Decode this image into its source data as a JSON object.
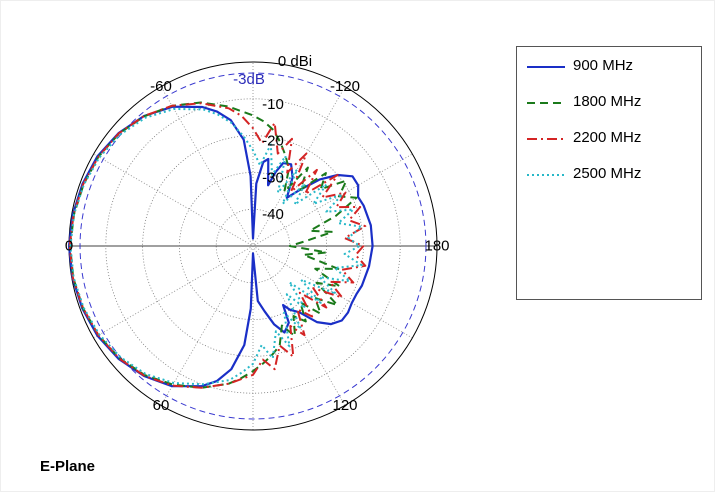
{
  "chart_data": {
    "type": "polar",
    "title": "",
    "radial_unit_label": "0 dBi",
    "reference_label": "-3dB",
    "reference_value": -3,
    "radial_range": [
      -50,
      0
    ],
    "radial_ticks": [
      {
        "value": -10,
        "label": "-10"
      },
      {
        "value": -20,
        "label": "-20"
      },
      {
        "value": -30,
        "label": "-30"
      },
      {
        "value": -40,
        "label": "-40"
      }
    ],
    "angle_ticks": [
      {
        "angle": 0,
        "label": "0"
      },
      {
        "angle": -60,
        "label": "-60"
      },
      {
        "angle": -120,
        "label": "-120"
      },
      {
        "angle": 60,
        "label": "60"
      },
      {
        "angle": 120,
        "label": "120"
      },
      {
        "angle": 180,
        "label": "180"
      }
    ],
    "grid": true,
    "legend_position": "right",
    "series": [
      {
        "name": "900 MHz",
        "color": "#1a2fc7",
        "dash": "solid",
        "points": [
          [
            0,
            0
          ],
          [
            -10,
            -0.3
          ],
          [
            -20,
            -0.7
          ],
          [
            -30,
            -1.2
          ],
          [
            -40,
            -2.3
          ],
          [
            -50,
            -3.9
          ],
          [
            -60,
            -6.3
          ],
          [
            -70,
            -9.8
          ],
          [
            -75,
            -12.2
          ],
          [
            -80,
            -15.3
          ],
          [
            -85,
            -21
          ],
          [
            -88,
            -31
          ],
          [
            -90,
            -48
          ],
          [
            -93,
            -33
          ],
          [
            -97,
            -27
          ],
          [
            -100,
            -26
          ],
          [
            -104,
            -33
          ],
          [
            -107,
            -29
          ],
          [
            -110,
            -26
          ],
          [
            -115,
            -25.5
          ],
          [
            -120,
            -28.5
          ],
          [
            -125,
            -34
          ],
          [
            -130,
            -30
          ],
          [
            -135,
            -24.5
          ],
          [
            -140,
            -20
          ],
          [
            -145,
            -17
          ],
          [
            -150,
            -17
          ],
          [
            -155,
            -18.5
          ],
          [
            -160,
            -18
          ],
          [
            -170,
            -17.5
          ],
          [
            -180,
            -17.5
          ],
          [
            170,
            -18
          ],
          [
            160,
            -18.5
          ],
          [
            155,
            -19
          ],
          [
            150,
            -19
          ],
          [
            145,
            -18.5
          ],
          [
            140,
            -18.5
          ],
          [
            135,
            -20
          ],
          [
            130,
            -23
          ],
          [
            125,
            -28
          ],
          [
            120,
            -30
          ],
          [
            117,
            -32
          ],
          [
            115,
            -27
          ],
          [
            110,
            -25
          ],
          [
            105,
            -28
          ],
          [
            100,
            -32
          ],
          [
            95,
            -35
          ],
          [
            90,
            -48
          ],
          [
            88,
            -33
          ],
          [
            85,
            -23
          ],
          [
            80,
            -16
          ],
          [
            75,
            -12
          ],
          [
            70,
            -9.5
          ],
          [
            60,
            -6
          ],
          [
            50,
            -3.9
          ],
          [
            40,
            -2.3
          ],
          [
            30,
            -1.2
          ],
          [
            20,
            -0.6
          ],
          [
            10,
            -0.2
          ],
          [
            0,
            0
          ]
        ]
      },
      {
        "name": "1800 MHz",
        "color": "#1b7a1b",
        "dash": "8,5",
        "points": [
          [
            0,
            -0.3
          ],
          [
            -10,
            -0.6
          ],
          [
            -20,
            -1
          ],
          [
            -30,
            -1.5
          ],
          [
            -40,
            -2.5
          ],
          [
            -50,
            -4
          ],
          [
            -60,
            -6
          ],
          [
            -70,
            -8.5
          ],
          [
            -80,
            -11.5
          ],
          [
            -90,
            -14.5
          ],
          [
            -95,
            -16
          ],
          [
            -100,
            -18
          ],
          [
            -105,
            -21
          ],
          [
            -110,
            -24
          ],
          [
            -115,
            -27
          ],
          [
            -120,
            -33
          ],
          [
            -125,
            -24
          ],
          [
            -130,
            -30
          ],
          [
            -135,
            -22
          ],
          [
            -140,
            -26
          ],
          [
            -145,
            -19
          ],
          [
            -150,
            -23
          ],
          [
            -155,
            -19
          ],
          [
            -160,
            -26
          ],
          [
            -165,
            -34
          ],
          [
            -170,
            -28
          ],
          [
            -175,
            -36
          ],
          [
            180,
            -40
          ],
          [
            175,
            -30
          ],
          [
            170,
            -36
          ],
          [
            165,
            -26
          ],
          [
            160,
            -32
          ],
          [
            155,
            -24
          ],
          [
            150,
            -30
          ],
          [
            145,
            -22
          ],
          [
            140,
            -28
          ],
          [
            135,
            -24
          ],
          [
            130,
            -30
          ],
          [
            125,
            -25
          ],
          [
            120,
            -28
          ],
          [
            115,
            -23
          ],
          [
            110,
            -27
          ],
          [
            105,
            -22
          ],
          [
            100,
            -20
          ],
          [
            95,
            -18
          ],
          [
            90,
            -16
          ],
          [
            85,
            -14
          ],
          [
            80,
            -12
          ],
          [
            70,
            -9
          ],
          [
            60,
            -6.5
          ],
          [
            50,
            -4.2
          ],
          [
            40,
            -2.6
          ],
          [
            30,
            -1.5
          ],
          [
            20,
            -0.8
          ],
          [
            10,
            -0.4
          ],
          [
            0,
            -0.3
          ]
        ]
      },
      {
        "name": "2200 MHz",
        "color": "#d42424",
        "dash": "10,4,2,4",
        "points": [
          [
            0,
            -0.2
          ],
          [
            -10,
            -0.5
          ],
          [
            -20,
            -0.9
          ],
          [
            -30,
            -1.5
          ],
          [
            -40,
            -2.4
          ],
          [
            -50,
            -3.9
          ],
          [
            -60,
            -6
          ],
          [
            -70,
            -8.7
          ],
          [
            -80,
            -12
          ],
          [
            -85,
            -14.5
          ],
          [
            -90,
            -18
          ],
          [
            -95,
            -22
          ],
          [
            -100,
            -16
          ],
          [
            -105,
            -24
          ],
          [
            -110,
            -19
          ],
          [
            -115,
            -28
          ],
          [
            -120,
            -21
          ],
          [
            -125,
            -32
          ],
          [
            -130,
            -23
          ],
          [
            -135,
            -30
          ],
          [
            -140,
            -20
          ],
          [
            -145,
            -27
          ],
          [
            -150,
            -21
          ],
          [
            -155,
            -25
          ],
          [
            -160,
            -19
          ],
          [
            -165,
            -23
          ],
          [
            -170,
            -19
          ],
          [
            -175,
            -25
          ],
          [
            180,
            -20
          ],
          [
            175,
            -22
          ],
          [
            170,
            -19
          ],
          [
            165,
            -25
          ],
          [
            160,
            -21
          ],
          [
            155,
            -27
          ],
          [
            150,
            -22
          ],
          [
            145,
            -30
          ],
          [
            140,
            -24
          ],
          [
            135,
            -32
          ],
          [
            130,
            -25
          ],
          [
            125,
            -29
          ],
          [
            120,
            -22
          ],
          [
            115,
            -26
          ],
          [
            110,
            -18
          ],
          [
            105,
            -22
          ],
          [
            100,
            -16
          ],
          [
            95,
            -19
          ],
          [
            90,
            -15
          ],
          [
            80,
            -12
          ],
          [
            70,
            -9
          ],
          [
            60,
            -6.2
          ],
          [
            50,
            -4
          ],
          [
            40,
            -2.5
          ],
          [
            30,
            -1.5
          ],
          [
            20,
            -0.8
          ],
          [
            10,
            -0.3
          ],
          [
            0,
            -0.2
          ]
        ]
      },
      {
        "name": "2500 MHz",
        "color": "#28b8c8",
        "dash": "2,3",
        "points": [
          [
            0,
            -0.4
          ],
          [
            -10,
            -0.6
          ],
          [
            -20,
            -1.1
          ],
          [
            -30,
            -1.8
          ],
          [
            -40,
            -2.9
          ],
          [
            -50,
            -4.5
          ],
          [
            -60,
            -7
          ],
          [
            -70,
            -10.5
          ],
          [
            -75,
            -13
          ],
          [
            -80,
            -16
          ],
          [
            -85,
            -20
          ],
          [
            -90,
            -24
          ],
          [
            -95,
            -28
          ],
          [
            -100,
            -22
          ],
          [
            -105,
            -30
          ],
          [
            -110,
            -24
          ],
          [
            -115,
            -34
          ],
          [
            -120,
            -26
          ],
          [
            -125,
            -36
          ],
          [
            -130,
            -28
          ],
          [
            -135,
            -34
          ],
          [
            -140,
            -24
          ],
          [
            -145,
            -30
          ],
          [
            -150,
            -22
          ],
          [
            -155,
            -28
          ],
          [
            -160,
            -21
          ],
          [
            -165,
            -26
          ],
          [
            -170,
            -20
          ],
          [
            -175,
            -24
          ],
          [
            180,
            -21
          ],
          [
            175,
            -25
          ],
          [
            170,
            -20
          ],
          [
            165,
            -27
          ],
          [
            160,
            -22
          ],
          [
            155,
            -30
          ],
          [
            150,
            -24
          ],
          [
            145,
            -34
          ],
          [
            140,
            -26
          ],
          [
            135,
            -36
          ],
          [
            130,
            -28
          ],
          [
            125,
            -34
          ],
          [
            120,
            -24
          ],
          [
            115,
            -30
          ],
          [
            110,
            -21
          ],
          [
            105,
            -26
          ],
          [
            100,
            -19
          ],
          [
            95,
            -23
          ],
          [
            90,
            -18
          ],
          [
            85,
            -15.5
          ],
          [
            80,
            -13
          ],
          [
            70,
            -10
          ],
          [
            60,
            -7
          ],
          [
            50,
            -4.6
          ],
          [
            40,
            -3
          ],
          [
            30,
            -1.8
          ],
          [
            20,
            -1
          ],
          [
            10,
            -0.5
          ],
          [
            0,
            -0.4
          ]
        ]
      }
    ]
  },
  "caption": "E-Plane"
}
